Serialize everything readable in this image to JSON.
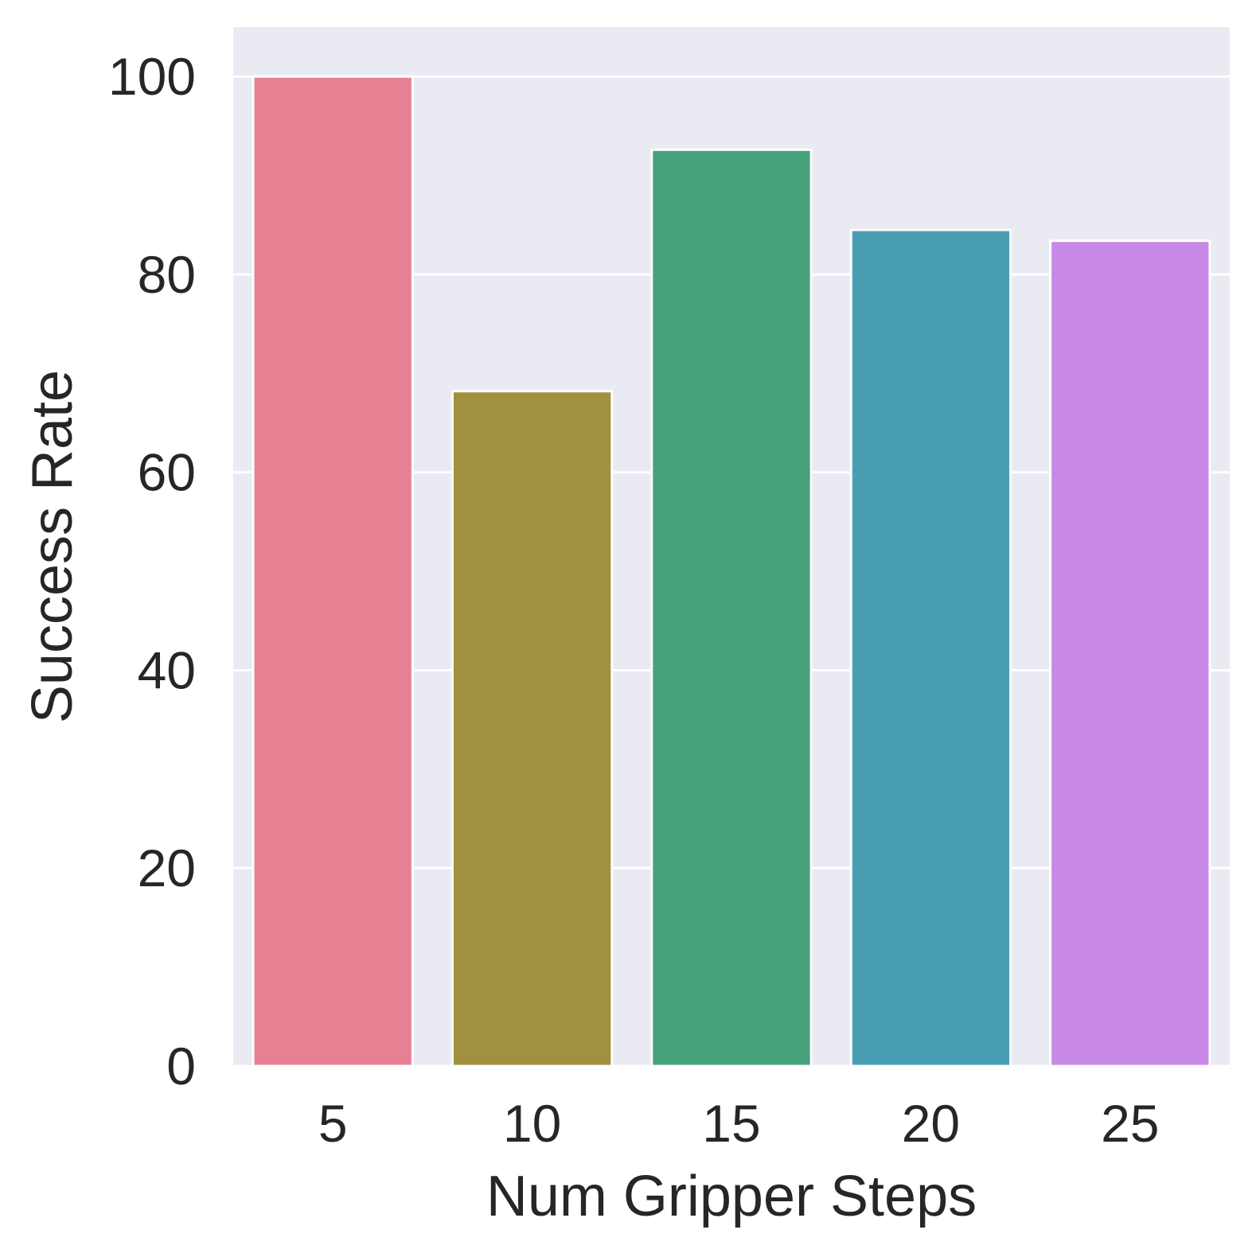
{
  "chart_data": {
    "type": "bar",
    "categories": [
      "5",
      "10",
      "15",
      "20",
      "25"
    ],
    "values": [
      100,
      68.2,
      92.6,
      84.5,
      83.4
    ],
    "colors": [
      "#e68193",
      "#a09141",
      "#45a27a",
      "#4a9eb4",
      "#c888e6"
    ],
    "title": "",
    "xlabel": "Num Gripper Steps",
    "ylabel": "Success Rate",
    "ylim": [
      0,
      105
    ],
    "yticks": [
      0,
      20,
      40,
      60,
      80,
      100
    ],
    "ytick_labels": [
      "0",
      "20",
      "40",
      "60",
      "80",
      "100"
    ],
    "grid": true,
    "style": "seaborn-darkgrid",
    "background_color": "#eaeaf2",
    "grid_color": "#ffffff"
  }
}
